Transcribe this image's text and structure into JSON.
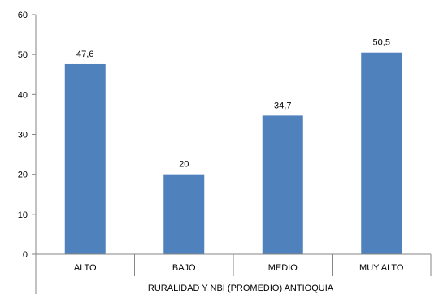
{
  "chart_data": {
    "type": "bar",
    "categories": [
      "ALTO",
      "BAJO",
      "MEDIO",
      "MUY ALTO"
    ],
    "values": [
      47.6,
      20,
      34.7,
      50.5
    ],
    "data_labels": [
      "47,6",
      "20",
      "34,7",
      "50,5"
    ],
    "title": "",
    "xlabel": "RURALIDAD Y NBI (PROMEDIO) ANTIOQUIA",
    "ylabel": "",
    "ylim": [
      0,
      60
    ],
    "yticks": [
      0,
      10,
      20,
      30,
      40,
      50,
      60
    ],
    "grid": false,
    "legend": "none",
    "bar_color": "#4f81bd"
  }
}
